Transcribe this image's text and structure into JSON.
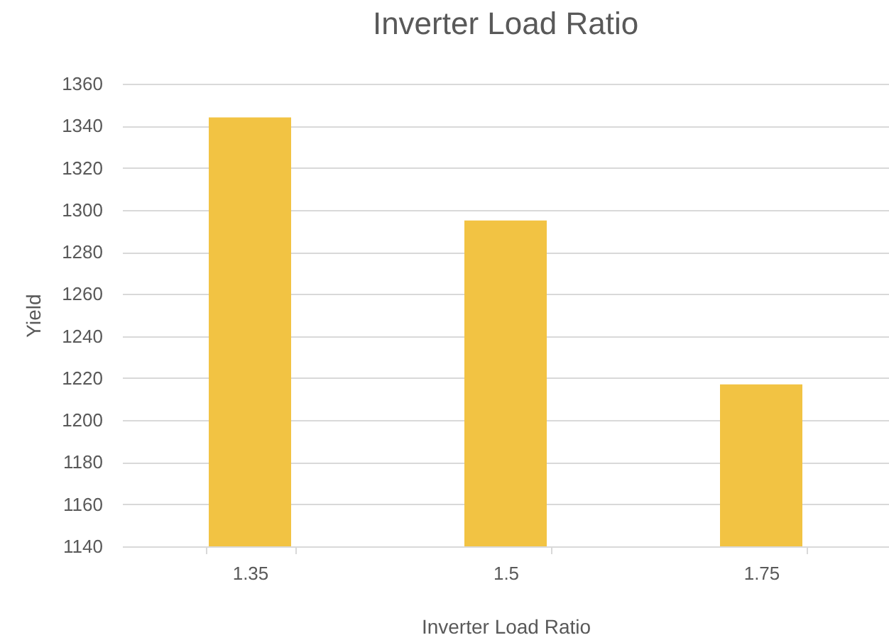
{
  "chart_data": {
    "type": "bar",
    "title": "Inverter Load Ratio",
    "xlabel": "Inverter Load Ratio",
    "ylabel": "Yield",
    "categories": [
      "1.35",
      "1.5",
      "1.75"
    ],
    "values": [
      1344,
      1295,
      1217
    ],
    "color": "#f2c343",
    "ylim": [
      1140,
      1360
    ],
    "yticks": [
      1140,
      1160,
      1180,
      1200,
      1220,
      1240,
      1260,
      1280,
      1300,
      1320,
      1340,
      1360
    ],
    "grid": "y"
  }
}
